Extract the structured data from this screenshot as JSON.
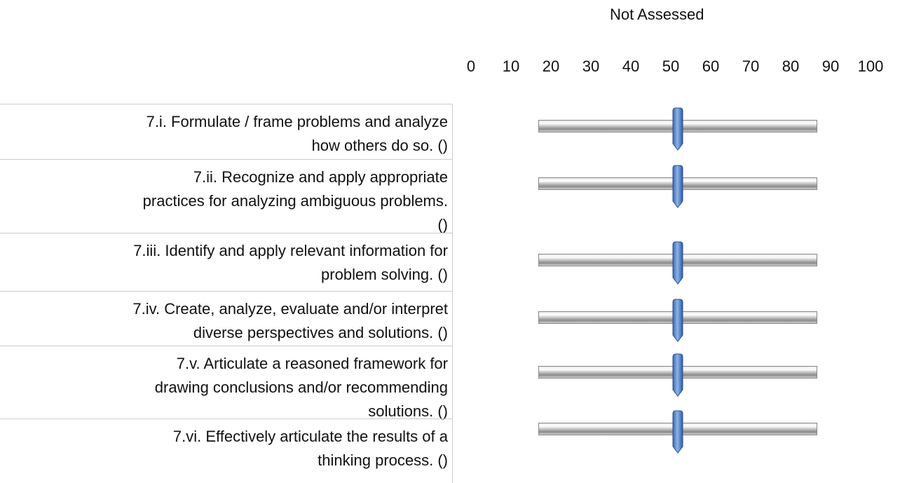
{
  "header": {
    "title": "Not Assessed",
    "ticks": [
      0,
      10,
      20,
      30,
      40,
      50,
      60,
      70,
      80,
      90,
      100
    ]
  },
  "rows": [
    {
      "label": "7.i. Formulate / frame problems and analyze\nhow others do so.  ()",
      "value": 50
    },
    {
      "label": "7.ii. Recognize and apply appropriate\npractices for analyzing ambiguous problems.\n()",
      "value": 50
    },
    {
      "label": "7.iii. Identify and apply relevant information for\nproblem solving.  ()",
      "value": 50
    },
    {
      "label": "7.iv. Create, analyze, evaluate and/or interpret\ndiverse perspectives and solutions.  ()",
      "value": 50
    },
    {
      "label": "7.v. Articulate a reasoned framework for\ndrawing conclusions and/or recommending\nsolutions.  ()",
      "value": 50
    },
    {
      "label": "7.vi. Effectively articulate the results of a\nthinking process.  ()",
      "value": 50
    }
  ]
}
